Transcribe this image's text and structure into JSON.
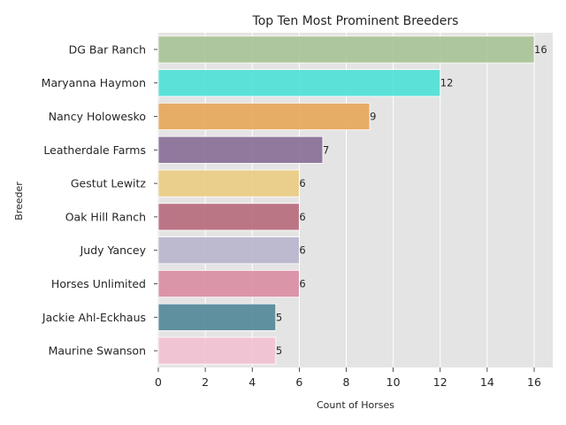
{
  "chart_data": {
    "type": "bar",
    "orientation": "horizontal",
    "title": "Top Ten Most Prominent Breeders",
    "xlabel": "Count of Horses",
    "ylabel": "Breeder",
    "xlim": [
      0,
      16.8
    ],
    "xticks": [
      0,
      2,
      4,
      6,
      8,
      10,
      12,
      14,
      16
    ],
    "grid": true,
    "categories": [
      "DG Bar Ranch",
      "Maryanna Haymon",
      "Nancy Holowesko",
      "Leatherdale Farms",
      "Gestut Lewitz",
      "Oak Hill Ranch",
      "Judy Yancey",
      "Horses Unlimited",
      "Jackie Ahl-Eckhaus",
      "Maurine Swanson"
    ],
    "values": [
      16,
      12,
      9,
      7,
      6,
      6,
      6,
      6,
      5,
      5
    ],
    "colors": [
      "#a6c293",
      "#48e0d6",
      "#e6a555",
      "#856a94",
      "#eacb7f",
      "#b56679",
      "#b7b3cb",
      "#da8a9f",
      "#4c8496",
      "#f2bfd0"
    ]
  }
}
